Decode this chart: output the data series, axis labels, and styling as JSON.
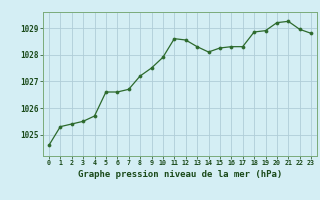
{
  "x": [
    0,
    1,
    2,
    3,
    4,
    5,
    6,
    7,
    8,
    9,
    10,
    11,
    12,
    13,
    14,
    15,
    16,
    17,
    18,
    19,
    20,
    21,
    22,
    23
  ],
  "y": [
    1024.6,
    1025.3,
    1025.4,
    1025.5,
    1025.7,
    1026.6,
    1026.6,
    1026.7,
    1027.2,
    1027.5,
    1027.9,
    1028.6,
    1028.55,
    1028.3,
    1028.1,
    1028.25,
    1028.3,
    1028.3,
    1028.85,
    1028.9,
    1029.2,
    1029.25,
    1028.95,
    1028.8
  ],
  "line_color": "#2d6a2d",
  "marker_color": "#2d6a2d",
  "bg_color": "#d4eef4",
  "grid_color": "#b0cdd8",
  "axis_label_color": "#1a4a1a",
  "tick_label_color": "#1a4a1a",
  "xlabel": "Graphe pression niveau de la mer (hPa)",
  "ylim_min": 1024.2,
  "ylim_max": 1029.6,
  "yticks": [
    1025,
    1026,
    1027,
    1028,
    1029
  ],
  "xticks": [
    0,
    1,
    2,
    3,
    4,
    5,
    6,
    7,
    8,
    9,
    10,
    11,
    12,
    13,
    14,
    15,
    16,
    17,
    18,
    19,
    20,
    21,
    22,
    23
  ]
}
